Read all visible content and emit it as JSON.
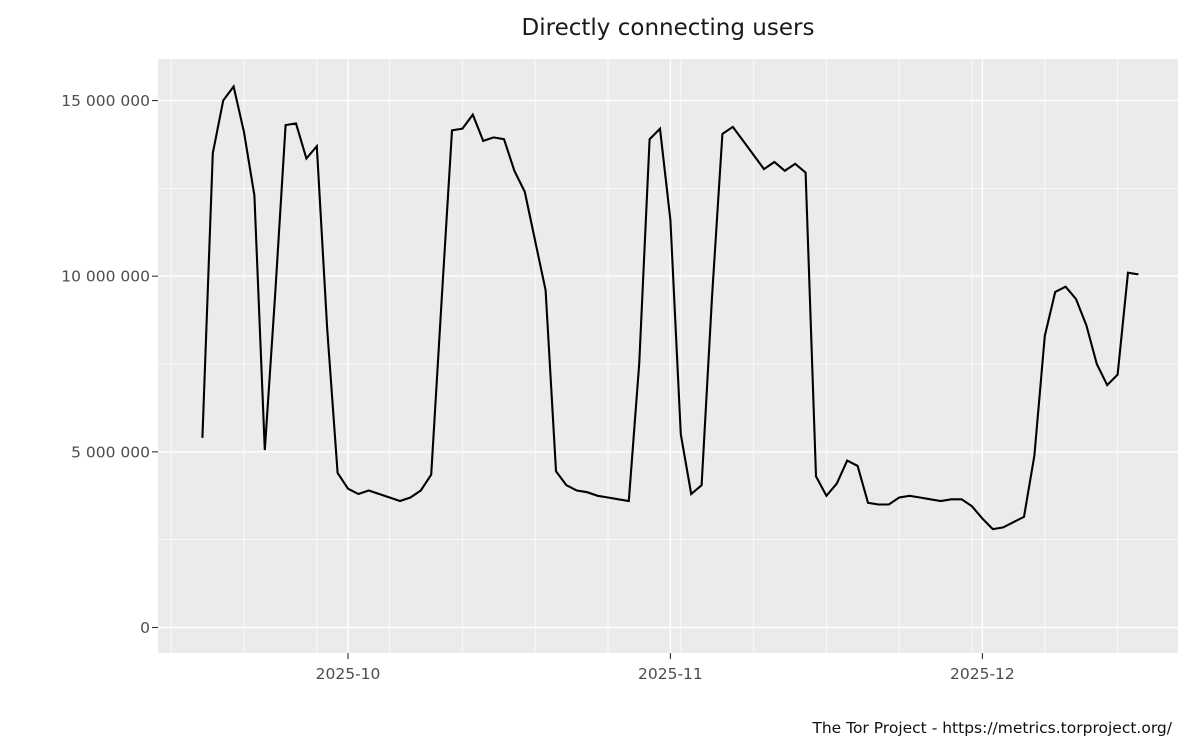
{
  "title": "Directly connecting users",
  "footer": "The Tor Project - https://metrics.torproject.org/",
  "colors": {
    "page_bg": "#ffffff",
    "panel_bg": "#ebebeb",
    "grid": "#ffffff",
    "line": "#000000",
    "axis_text": "#4d4d4d",
    "tick_mark": "#333333",
    "title_text": "#1a1a1a"
  },
  "chart_data": {
    "type": "line",
    "title": "Directly connecting users",
    "xlabel": "",
    "ylabel": "",
    "legend": "none",
    "grid": "on",
    "ylim": [
      0,
      15400000
    ],
    "y_ticks": [
      {
        "label": "0",
        "value": 0
      },
      {
        "label": "5 000 000",
        "value": 5000000
      },
      {
        "label": "10 000 000",
        "value": 10000000
      },
      {
        "label": "15 000 000",
        "value": 15000000
      }
    ],
    "y_minor_values": [
      2500000,
      7500000,
      12500000
    ],
    "x_ticks": [
      {
        "label": "2025-10",
        "date": "2025-10-01"
      },
      {
        "label": "2025-11",
        "date": "2025-11-01"
      },
      {
        "label": "2025-12",
        "date": "2025-12-01"
      }
    ],
    "x_minor_dates": [
      "2025-09-14",
      "2025-09-21",
      "2025-09-28",
      "2025-10-05",
      "2025-10-12",
      "2025-10-19",
      "2025-10-26",
      "2025-11-02",
      "2025-11-09",
      "2025-11-16",
      "2025-11-23",
      "2025-11-30",
      "2025-12-07",
      "2025-12-14"
    ],
    "series": [
      {
        "name": "directly connecting users",
        "color": "#000000",
        "points": [
          [
            "2025-09-17",
            5400000
          ],
          [
            "2025-09-18",
            13500000
          ],
          [
            "2025-09-19",
            15000000
          ],
          [
            "2025-09-20",
            15400000
          ],
          [
            "2025-09-21",
            14100000
          ],
          [
            "2025-09-22",
            12300000
          ],
          [
            "2025-09-23",
            5050000
          ],
          [
            "2025-09-24",
            9500000
          ],
          [
            "2025-09-25",
            14300000
          ],
          [
            "2025-09-26",
            14350000
          ],
          [
            "2025-09-27",
            13350000
          ],
          [
            "2025-09-28",
            13700000
          ],
          [
            "2025-09-29",
            8500000
          ],
          [
            "2025-09-30",
            4400000
          ],
          [
            "2025-10-01",
            3950000
          ],
          [
            "2025-10-02",
            3800000
          ],
          [
            "2025-10-03",
            3900000
          ],
          [
            "2025-10-04",
            3800000
          ],
          [
            "2025-10-05",
            3700000
          ],
          [
            "2025-10-06",
            3600000
          ],
          [
            "2025-10-07",
            3700000
          ],
          [
            "2025-10-08",
            3900000
          ],
          [
            "2025-10-09",
            4350000
          ],
          [
            "2025-10-10",
            9300000
          ],
          [
            "2025-10-11",
            14150000
          ],
          [
            "2025-10-12",
            14200000
          ],
          [
            "2025-10-13",
            14600000
          ],
          [
            "2025-10-14",
            13850000
          ],
          [
            "2025-10-15",
            13950000
          ],
          [
            "2025-10-16",
            13900000
          ],
          [
            "2025-10-17",
            13000000
          ],
          [
            "2025-10-18",
            12400000
          ],
          [
            "2025-10-19",
            11000000
          ],
          [
            "2025-10-20",
            9600000
          ],
          [
            "2025-10-21",
            4450000
          ],
          [
            "2025-10-22",
            4050000
          ],
          [
            "2025-10-23",
            3900000
          ],
          [
            "2025-10-24",
            3850000
          ],
          [
            "2025-10-25",
            3750000
          ],
          [
            "2025-10-26",
            3700000
          ],
          [
            "2025-10-27",
            3650000
          ],
          [
            "2025-10-28",
            3600000
          ],
          [
            "2025-10-29",
            7500000
          ],
          [
            "2025-10-30",
            13900000
          ],
          [
            "2025-10-31",
            14200000
          ],
          [
            "2025-11-01",
            11600000
          ],
          [
            "2025-11-02",
            5500000
          ],
          [
            "2025-11-03",
            3800000
          ],
          [
            "2025-11-04",
            4050000
          ],
          [
            "2025-11-05",
            9400000
          ],
          [
            "2025-11-06",
            14050000
          ],
          [
            "2025-11-07",
            14250000
          ],
          [
            "2025-11-08",
            13850000
          ],
          [
            "2025-11-09",
            13450000
          ],
          [
            "2025-11-10",
            13050000
          ],
          [
            "2025-11-11",
            13250000
          ],
          [
            "2025-11-12",
            13000000
          ],
          [
            "2025-11-13",
            13200000
          ],
          [
            "2025-11-14",
            12950000
          ],
          [
            "2025-11-15",
            4300000
          ],
          [
            "2025-11-16",
            3750000
          ],
          [
            "2025-11-17",
            4100000
          ],
          [
            "2025-11-18",
            4750000
          ],
          [
            "2025-11-19",
            4600000
          ],
          [
            "2025-11-20",
            3550000
          ],
          [
            "2025-11-21",
            3500000
          ],
          [
            "2025-11-22",
            3500000
          ],
          [
            "2025-11-23",
            3700000
          ],
          [
            "2025-11-24",
            3750000
          ],
          [
            "2025-11-25",
            3700000
          ],
          [
            "2025-11-26",
            3650000
          ],
          [
            "2025-11-27",
            3600000
          ],
          [
            "2025-11-28",
            3650000
          ],
          [
            "2025-11-29",
            3650000
          ],
          [
            "2025-11-30",
            3450000
          ],
          [
            "2025-12-01",
            3100000
          ],
          [
            "2025-12-02",
            2800000
          ],
          [
            "2025-12-03",
            2850000
          ],
          [
            "2025-12-04",
            3000000
          ],
          [
            "2025-12-05",
            3150000
          ],
          [
            "2025-12-06",
            4900000
          ],
          [
            "2025-12-07",
            8300000
          ],
          [
            "2025-12-08",
            9550000
          ],
          [
            "2025-12-09",
            9700000
          ],
          [
            "2025-12-10",
            9350000
          ],
          [
            "2025-12-11",
            8600000
          ],
          [
            "2025-12-12",
            7500000
          ],
          [
            "2025-12-13",
            6900000
          ],
          [
            "2025-12-14",
            7200000
          ],
          [
            "2025-12-15",
            10100000
          ],
          [
            "2025-12-16",
            10050000
          ]
        ]
      }
    ]
  }
}
